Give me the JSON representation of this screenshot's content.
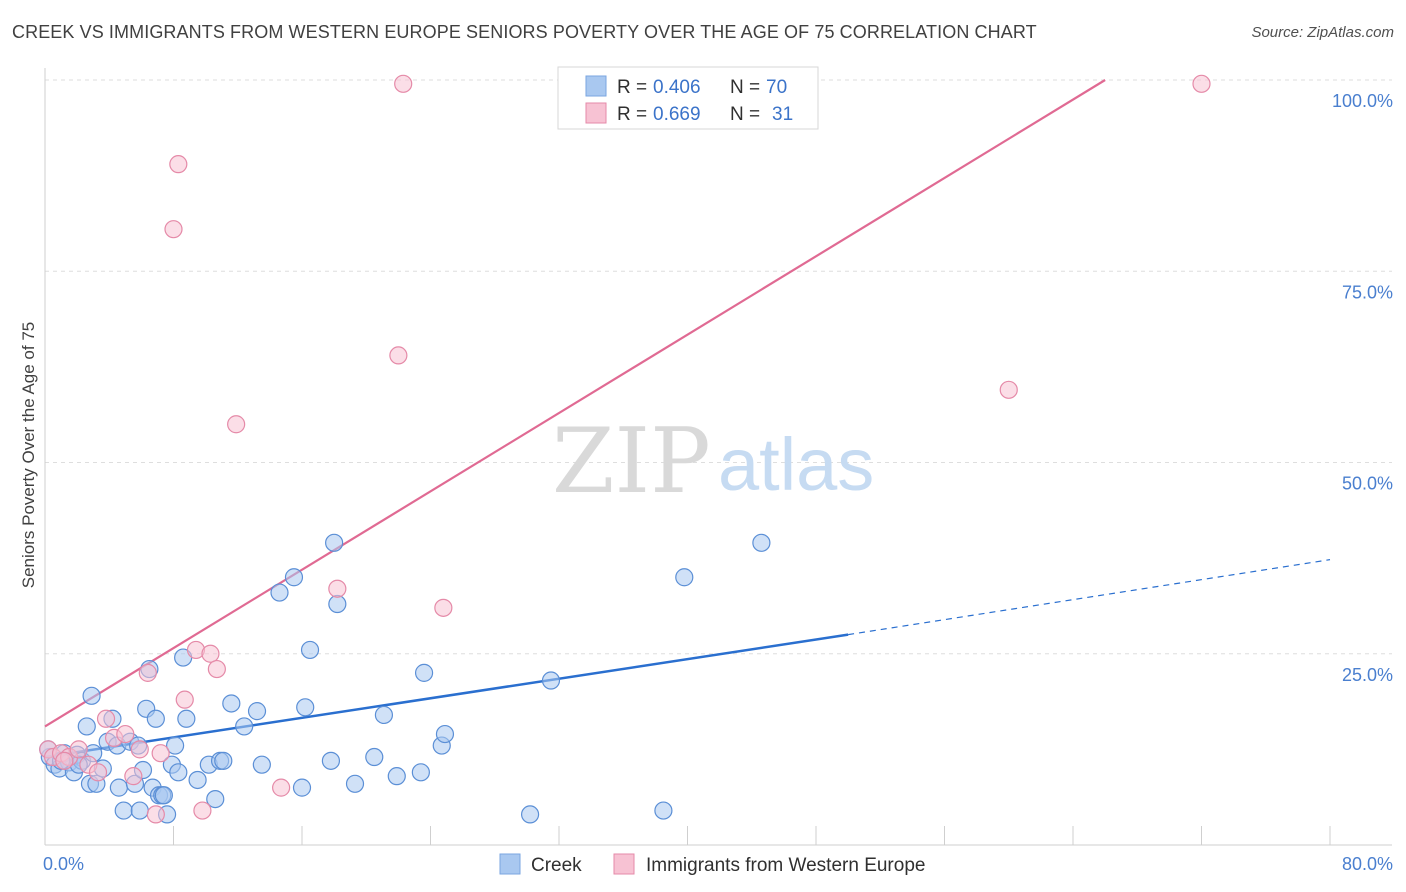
{
  "header": {
    "title": "CREEK VS IMMIGRANTS FROM WESTERN EUROPE SENIORS POVERTY OVER THE AGE OF 75 CORRELATION CHART",
    "source": "Source: ZipAtlas.com"
  },
  "watermark": {
    "zip": "ZIP",
    "atlas": "atlas"
  },
  "legend": {
    "rows": [
      {
        "r_label": "R =",
        "r_value": "0.406",
        "n_label": "N =",
        "n_value": "70",
        "color": "#a9c8f0"
      },
      {
        "r_label": "R =",
        "r_value": "0.669",
        "n_label": "N =",
        "n_value": "31",
        "color": "#f7b9cc"
      }
    ]
  },
  "colors": {
    "creek_fill": "#a9c8f0",
    "creek_stroke": "#5b8fd6",
    "creek_line": "#2a6fcf",
    "immig_fill": "#f7c2d3",
    "immig_stroke": "#e58aa8",
    "immig_line": "#e06a93",
    "grid": "#dedede",
    "tick_text": "#4a7fcf"
  },
  "chart_data": {
    "type": "scatter",
    "title": "CREEK VS IMMIGRANTS FROM WESTERN EUROPE SENIORS POVERTY OVER THE AGE OF 75 CORRELATION CHART",
    "xlabel": "",
    "ylabel": "Seniors Poverty Over the Age of 75",
    "xlim": [
      0,
      80
    ],
    "ylim": [
      0,
      100
    ],
    "x_tick_labels": [
      "0.0%",
      "80.0%"
    ],
    "y_ticks": [
      25,
      50,
      75,
      100
    ],
    "y_tick_labels": [
      "25.0%",
      "50.0%",
      "75.0%",
      "100.0%"
    ],
    "grid": true,
    "legend_position": "top-center",
    "series": [
      {
        "name": "Creek",
        "r": 0.406,
        "n": 70,
        "trend": {
          "x0": 0,
          "y0": 11.5,
          "x1": 50,
          "y1": 27.5,
          "dashed_to_x": 80,
          "dashed_to_y": 37.3
        },
        "points": [
          [
            0.3,
            11.5
          ],
          [
            0.6,
            10.5
          ],
          [
            0.9,
            10.0
          ],
          [
            1.2,
            12.0
          ],
          [
            1.5,
            10.8
          ],
          [
            1.8,
            9.5
          ],
          [
            2.0,
            11.8
          ],
          [
            2.3,
            11.0
          ],
          [
            2.6,
            15.5
          ],
          [
            2.9,
            19.5
          ],
          [
            2.8,
            8.0
          ],
          [
            3.2,
            8.0
          ],
          [
            3.6,
            10.0
          ],
          [
            3.9,
            13.5
          ],
          [
            4.2,
            16.5
          ],
          [
            4.5,
            13.0
          ],
          [
            4.6,
            7.5
          ],
          [
            4.9,
            4.5
          ],
          [
            5.3,
            13.5
          ],
          [
            5.6,
            8.0
          ],
          [
            5.9,
            4.5
          ],
          [
            6.1,
            9.8
          ],
          [
            6.3,
            17.8
          ],
          [
            6.5,
            23.0
          ],
          [
            6.7,
            7.5
          ],
          [
            6.9,
            16.5
          ],
          [
            7.1,
            6.5
          ],
          [
            7.3,
            6.5
          ],
          [
            7.6,
            4.0
          ],
          [
            7.9,
            10.5
          ],
          [
            8.1,
            13.0
          ],
          [
            8.3,
            9.5
          ],
          [
            8.6,
            24.5
          ],
          [
            8.8,
            16.5
          ],
          [
            9.5,
            8.5
          ],
          [
            10.2,
            10.5
          ],
          [
            10.6,
            6.0
          ],
          [
            10.9,
            11.0
          ],
          [
            11.1,
            11.0
          ],
          [
            11.6,
            18.5
          ],
          [
            12.4,
            15.5
          ],
          [
            13.2,
            17.5
          ],
          [
            13.5,
            10.5
          ],
          [
            14.6,
            33.0
          ],
          [
            15.5,
            35.0
          ],
          [
            16.5,
            25.5
          ],
          [
            16.0,
            7.5
          ],
          [
            16.2,
            18.0
          ],
          [
            17.8,
            11.0
          ],
          [
            18.0,
            39.5
          ],
          [
            18.2,
            31.5
          ],
          [
            19.3,
            8.0
          ],
          [
            20.5,
            11.5
          ],
          [
            21.1,
            17.0
          ],
          [
            21.9,
            9.0
          ],
          [
            23.4,
            9.5
          ],
          [
            23.6,
            22.5
          ],
          [
            24.7,
            13.0
          ],
          [
            24.9,
            14.5
          ],
          [
            30.2,
            4.0
          ],
          [
            31.5,
            21.5
          ],
          [
            38.5,
            4.5
          ],
          [
            39.8,
            35.0
          ],
          [
            44.6,
            39.5
          ],
          [
            0.2,
            12.5
          ],
          [
            1.0,
            11.0
          ],
          [
            2.1,
            10.5
          ],
          [
            3.0,
            12.0
          ],
          [
            5.8,
            13.0
          ],
          [
            7.4,
            6.5
          ]
        ]
      },
      {
        "name": "Immigrants from Western Europe",
        "r": 0.669,
        "n": 31,
        "trend": {
          "x0": 0,
          "y0": 15.5,
          "x1": 66,
          "y1": 100
        },
        "points": [
          [
            0.2,
            12.5
          ],
          [
            0.5,
            11.5
          ],
          [
            1.0,
            12.0
          ],
          [
            1.5,
            11.5
          ],
          [
            2.1,
            12.5
          ],
          [
            2.7,
            10.5
          ],
          [
            3.3,
            9.5
          ],
          [
            3.8,
            16.5
          ],
          [
            4.3,
            14.0
          ],
          [
            5.0,
            14.5
          ],
          [
            5.5,
            9.0
          ],
          [
            5.9,
            12.5
          ],
          [
            6.4,
            22.5
          ],
          [
            6.9,
            4.0
          ],
          [
            7.2,
            12.0
          ],
          [
            8.0,
            80.5
          ],
          [
            8.3,
            89.0
          ],
          [
            8.7,
            19.0
          ],
          [
            9.4,
            25.5
          ],
          [
            9.8,
            4.5
          ],
          [
            10.3,
            25.0
          ],
          [
            10.7,
            23.0
          ],
          [
            11.9,
            55.0
          ],
          [
            14.7,
            7.5
          ],
          [
            18.2,
            33.5
          ],
          [
            22.0,
            64.0
          ],
          [
            22.3,
            99.5
          ],
          [
            24.8,
            31.0
          ],
          [
            60.0,
            59.5
          ],
          [
            72.0,
            99.5
          ],
          [
            1.2,
            11.0
          ]
        ]
      }
    ]
  },
  "bottom_legend": {
    "items": [
      {
        "label": "Creek",
        "color": "#a9c8f0"
      },
      {
        "label": "Immigrants from Western Europe",
        "color": "#f7c2d3"
      }
    ]
  }
}
